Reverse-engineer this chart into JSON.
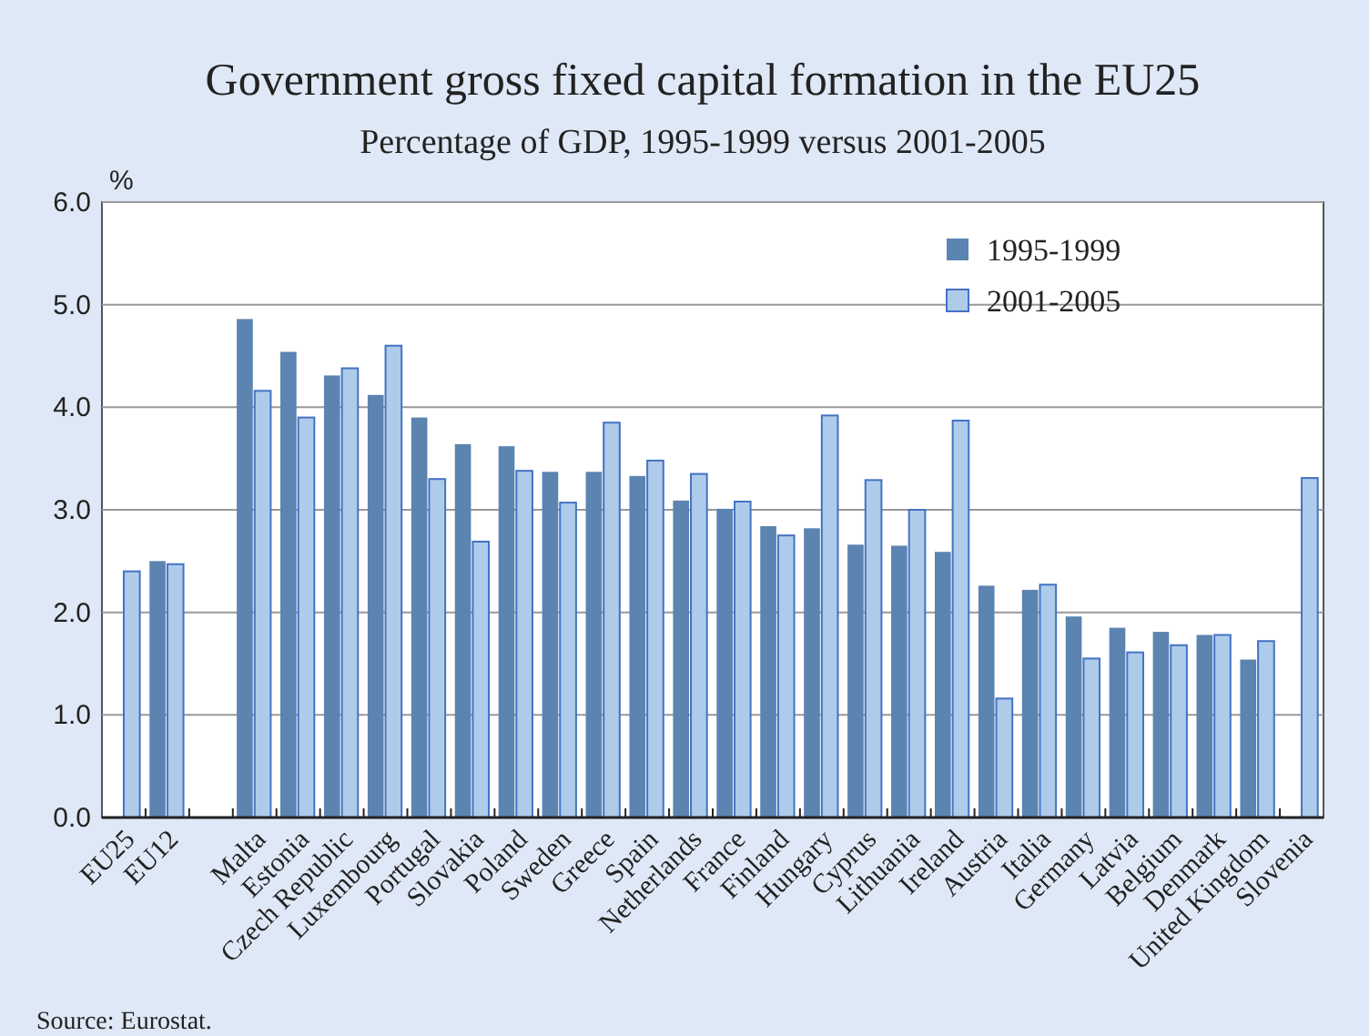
{
  "chart_data": {
    "type": "bar",
    "title": "Government gross fixed capital formation in the EU25",
    "subtitle": "Percentage of GDP, 1995-1999 versus 2001-2005",
    "ylabel": "%",
    "categories": [
      "EU25",
      "EU12",
      null,
      "Malta",
      "Estonia",
      "Czech Republic",
      "Luxembourg",
      "Portugal",
      "Slovakia",
      "Poland",
      "Sweden",
      "Greece",
      "Spain",
      "Netherlands",
      "France",
      "Finland",
      "Hungary",
      "Cyprus",
      "Lithuania",
      "Ireland",
      "Austria",
      "Italia",
      "Germany",
      "Latvia",
      "Belgium",
      "Denmark",
      "United Kingdom",
      "Slovenia"
    ],
    "series": [
      {
        "name": "1995-1999",
        "color": "#5b84b1",
        "values": [
          null,
          2.5,
          null,
          4.86,
          4.54,
          4.31,
          4.12,
          3.9,
          3.64,
          3.62,
          3.37,
          3.37,
          3.33,
          3.09,
          3.01,
          2.84,
          2.82,
          2.66,
          2.65,
          2.59,
          2.26,
          2.22,
          1.96,
          1.85,
          1.81,
          1.78,
          1.54,
          null
        ]
      },
      {
        "name": "2001-2005",
        "color": "#aecbea",
        "values": [
          2.4,
          2.47,
          null,
          4.16,
          3.9,
          4.38,
          4.6,
          3.3,
          2.69,
          3.38,
          3.07,
          3.85,
          3.48,
          3.35,
          3.08,
          2.75,
          3.92,
          3.29,
          3.0,
          3.87,
          1.16,
          2.27,
          1.55,
          1.61,
          1.68,
          1.78,
          1.72,
          3.31
        ]
      }
    ],
    "ylim": [
      0,
      6
    ],
    "yticks": [
      {
        "value": 0,
        "label": "0.0"
      },
      {
        "value": 1,
        "label": "1.0"
      },
      {
        "value": 2,
        "label": "2.0"
      },
      {
        "value": 3,
        "label": "3.0"
      },
      {
        "value": 4,
        "label": "4.0"
      },
      {
        "value": 5,
        "label": "5.0"
      },
      {
        "value": 6,
        "label": "6.0"
      }
    ],
    "grid": "y",
    "legend": "top right",
    "annotations": [
      "Source: Eurostat."
    ]
  }
}
